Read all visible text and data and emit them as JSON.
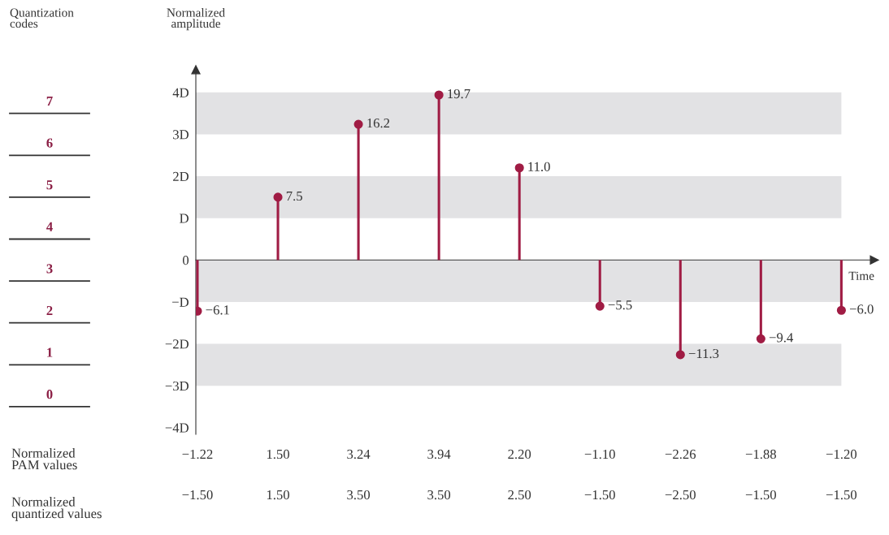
{
  "chart_data": [
    {
      "type": "lollipop",
      "ylabel": "Normalized\namplitude",
      "y2label": "Quantization\ncodes",
      "xlabel": "Time",
      "annotations": [
        "Normalized\nPAM values",
        {
          "text": "−6.1",
          "x": "−1.22",
          "y": -1.22
        },
        {
          "text": "7.5",
          "x": "1.50",
          "y": 1.5
        },
        {
          "text": "16.2",
          "x": "3.24",
          "y": 3.24
        },
        {
          "text": "19.7",
          "x": "3.94",
          "y": 3.94
        },
        {
          "text": "11.0",
          "x": "2.20",
          "y": 2.2
        },
        {
          "text": "−5.5",
          "x": "−1.10",
          "y": -1.1
        },
        {
          "text": "−11.3",
          "x": "−2.26",
          "y": -2.26
        },
        {
          "text": "−9.4",
          "x": "−1.88",
          "y": -1.88
        },
        {
          "text": "−6.0",
          "x": "−1.20",
          "y": -1.2
        }
      ],
      "categories": [
        "−1.22",
        "1.50",
        "3.24",
        "3.94",
        "2.20",
        "−1.10",
        "−2.26",
        "−1.88",
        "−1.20"
      ],
      "values": [
        -1.22,
        1.5,
        3.24,
        3.94,
        2.2,
        -1.1,
        -2.26,
        -1.88,
        -1.2
      ],
      "color": "#a01c44",
      "marker": "circle",
      "ylim": [
        -4.16,
        4.54
      ],
      "yticks": [
        {
          "value": 4,
          "label": "4D"
        },
        {
          "value": 3,
          "label": "3D"
        },
        {
          "value": 2,
          "label": "2D"
        },
        {
          "value": 1,
          "label": "D"
        },
        {
          "value": 0,
          "label": "0"
        },
        {
          "value": -1,
          "label": "−D"
        },
        {
          "value": -2,
          "label": "−2D"
        },
        {
          "value": -3,
          "label": "−3D"
        },
        {
          "value": -4,
          "label": "−4D"
        }
      ],
      "y2lim": [
        -0.66,
        8.04
      ],
      "y2ticks": [
        0,
        1,
        2,
        3,
        4,
        5,
        6,
        7
      ],
      "bands": [
        {
          "axis": "y",
          "from": 3,
          "to": 4,
          "color": "#e2e2e4"
        },
        {
          "axis": "y",
          "from": 1,
          "to": 2,
          "color": "#e2e2e4"
        },
        {
          "axis": "y",
          "from": -1,
          "to": 0,
          "color": "#e2e2e4"
        },
        {
          "axis": "y",
          "from": -3,
          "to": -2,
          "color": "#e2e2e4"
        }
      ]
    },
    {
      "type": "other",
      "ylabel": "Normalized\nquantized values",
      "categories": [
        "−1.50",
        "1.50",
        "3.50",
        "3.50",
        "2.50",
        "−1.50",
        "−2.50",
        "−1.50",
        "−1.50"
      ]
    }
  ]
}
